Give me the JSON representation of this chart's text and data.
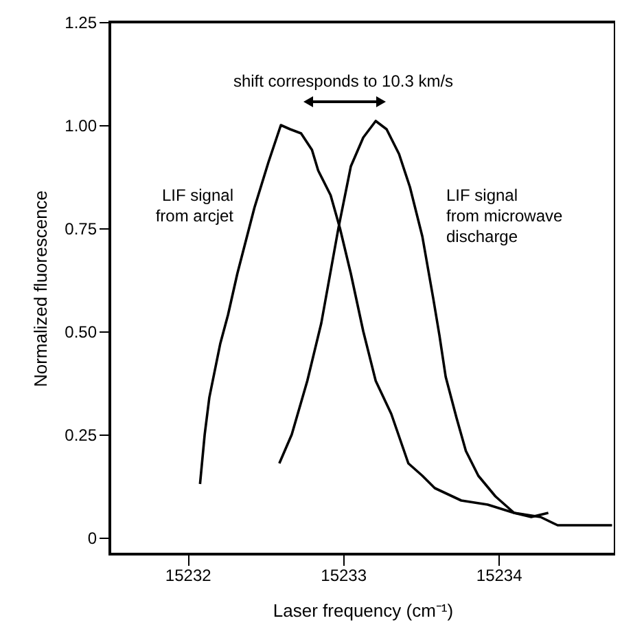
{
  "chart_data": {
    "type": "line",
    "xlabel": "Laser frequency (cm⁻¹)",
    "ylabel": "Normalized fluorescence",
    "xlim": [
      15231.5,
      15234.75
    ],
    "ylim": [
      -0.04,
      1.25
    ],
    "xticks": [
      15232,
      15233,
      15234
    ],
    "yticks": [
      0,
      {
        "value": 0.25,
        "label": "0.25"
      },
      {
        "value": 0.5,
        "label": "0.50"
      },
      {
        "value": 0.75,
        "label": "0.75"
      },
      {
        "value": 1,
        "label": "1.00"
      },
      {
        "value": 1.25,
        "label": "1.25"
      }
    ],
    "grid": false,
    "line_style": "solid",
    "marker": "none",
    "annotations": [
      "shift corresponds to 10.3 km/s",
      "LIF signal\nfrom arcjet",
      "LIF signal\nfrom microwave\ndischarge"
    ],
    "series": [
      {
        "color": "#000000",
        "x": [
          15232.08,
          15232.11,
          15232.14,
          15232.21,
          15232.26,
          15232.32,
          15232.43,
          15232.52,
          15232.6,
          15232.66,
          15232.73,
          15232.8,
          15232.84,
          15232.92,
          15232.98,
          15233.05,
          15233.13,
          15233.21,
          15233.31,
          15233.42,
          15233.51,
          15233.59,
          15233.76,
          15233.93,
          15234.1,
          15234.27,
          15234.38,
          15234.55,
          15234.73
        ],
        "values": [
          0.13,
          0.25,
          0.34,
          0.47,
          0.54,
          0.64,
          0.8,
          0.91,
          1.0,
          0.99,
          0.98,
          0.94,
          0.89,
          0.83,
          0.75,
          0.64,
          0.5,
          0.38,
          0.3,
          0.18,
          0.15,
          0.12,
          0.09,
          0.08,
          0.06,
          0.05,
          0.03,
          0.03,
          0.03
        ]
      },
      {
        "color": "#000000",
        "x": [
          15232.59,
          15232.67,
          15232.77,
          15232.86,
          15232.97,
          15233.05,
          15233.13,
          15233.21,
          15233.28,
          15233.36,
          15233.43,
          15233.51,
          15233.58,
          15233.62,
          15233.66,
          15233.73,
          15233.79,
          15233.87,
          15233.98,
          15234.1,
          15234.21,
          15234.32
        ],
        "values": [
          0.18,
          0.25,
          0.38,
          0.52,
          0.75,
          0.9,
          0.97,
          1.01,
          0.99,
          0.93,
          0.85,
          0.73,
          0.58,
          0.49,
          0.39,
          0.29,
          0.21,
          0.15,
          0.1,
          0.06,
          0.05,
          0.06
        ]
      }
    ]
  }
}
